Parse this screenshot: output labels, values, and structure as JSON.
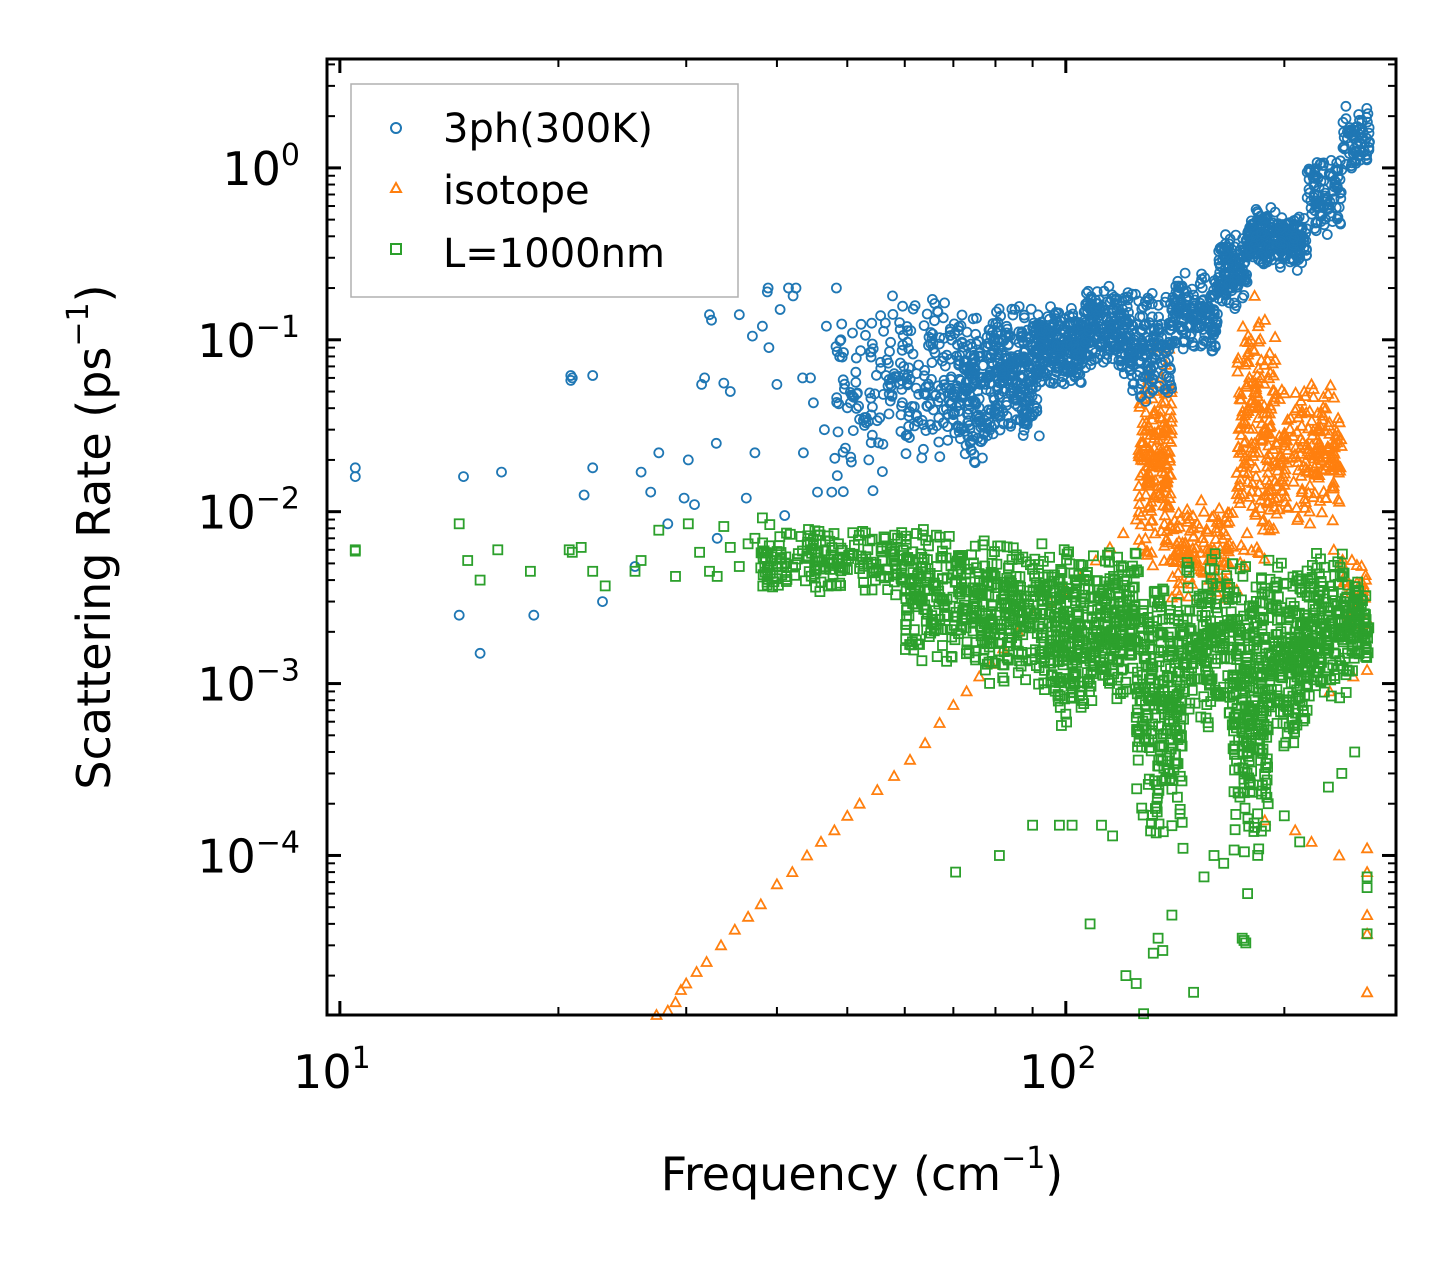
{
  "chart_data": {
    "type": "scatter",
    "xlabel": "Frequency (cm",
    "xlabel_unit_exp": "−1",
    "xlabel_suffix": ")",
    "ylabel": "Scattering Rate (ps",
    "ylabel_unit_exp": "−1",
    "ylabel_suffix": ")",
    "xscale": "log",
    "yscale": "log",
    "xlim": [
      9.6,
      285
    ],
    "ylim": [
      1.18e-05,
      4.3
    ],
    "x_ticks": [
      {
        "value": 10,
        "base": "10",
        "exp": "1"
      },
      {
        "value": 100,
        "base": "10",
        "exp": "2"
      }
    ],
    "y_ticks": [
      {
        "value": 1,
        "base": "10",
        "exp": "0"
      },
      {
        "value": 0.1,
        "base": "10",
        "exp": "−1"
      },
      {
        "value": 0.01,
        "base": "10",
        "exp": "−2"
      },
      {
        "value": 0.001,
        "base": "10",
        "exp": "−3"
      },
      {
        "value": 0.0001,
        "base": "10",
        "exp": "−4"
      }
    ],
    "legend_position": "top-left",
    "series": [
      {
        "name": "3ph(300K)",
        "marker": "circle",
        "color": "#1f77b4",
        "points": [
          [
            10.5,
            0.018
          ],
          [
            10.5,
            0.016
          ],
          [
            14.6,
            0.0025
          ],
          [
            14.8,
            0.016
          ],
          [
            15.6,
            0.0015
          ],
          [
            16.7,
            0.017
          ],
          [
            18.5,
            0.0025
          ],
          [
            20.8,
            0.058
          ],
          [
            20.8,
            0.062
          ],
          [
            20.9,
            0.06
          ],
          [
            21.7,
            0.0125
          ],
          [
            22.3,
            0.018
          ],
          [
            22.3,
            0.062
          ],
          [
            23.0,
            0.003
          ],
          [
            25.5,
            0.0048
          ],
          [
            26.0,
            0.017
          ],
          [
            26.8,
            0.013
          ],
          [
            27.5,
            0.022
          ],
          [
            28.3,
            0.0085
          ],
          [
            29.8,
            0.012
          ],
          [
            30.2,
            0.02
          ],
          [
            30.8,
            0.011
          ],
          [
            31.5,
            0.055
          ],
          [
            31.8,
            0.06
          ],
          [
            32.5,
            0.13
          ],
          [
            32.3,
            0.14
          ],
          [
            33.0,
            0.025
          ],
          [
            33.1,
            0.007
          ],
          [
            33.8,
            0.056
          ],
          [
            34.5,
            0.05
          ],
          [
            35.5,
            0.14
          ],
          [
            36.3,
            0.012
          ],
          [
            37.0,
            0.105
          ],
          [
            37.3,
            0.022
          ],
          [
            38.8,
            0.19
          ],
          [
            38.9,
            0.2
          ],
          [
            38.2,
            0.12
          ],
          [
            39.0,
            0.09
          ],
          [
            40.0,
            0.055
          ],
          [
            40.4,
            0.15
          ],
          [
            41.0,
            0.0095
          ],
          [
            41.5,
            0.2
          ],
          [
            42.1,
            0.18
          ],
          [
            42.5,
            0.2
          ],
          [
            43.4,
            0.06
          ],
          [
            43.5,
            0.022
          ],
          [
            44.5,
            0.06
          ],
          [
            44.9,
            0.043
          ],
          [
            45.5,
            0.013
          ],
          [
            46.5,
            0.03
          ],
          [
            46.8,
            0.12
          ],
          [
            47.6,
            0.013
          ],
          [
            48.3,
            0.2
          ],
          [
            49.0,
            0.1
          ]
        ],
        "clusters": [
          {
            "x_range": [
              48,
              56
            ],
            "y_range": [
              0.012,
              0.17
            ],
            "count": 70
          },
          {
            "x_range": [
              56,
              70
            ],
            "y_range": [
              0.016,
              0.19
            ],
            "count": 150
          },
          {
            "x_range": [
              70,
              78
            ],
            "y_range": [
              0.017,
              0.16
            ],
            "count": 160
          },
          {
            "x_range": [
              78,
              92
            ],
            "y_range": [
              0.025,
              0.17
            ],
            "count": 280
          },
          {
            "x_range": [
              92,
              106
            ],
            "y_range": [
              0.05,
              0.17
            ],
            "count": 220
          },
          {
            "x_range": [
              106,
              122
            ],
            "y_range": [
              0.06,
              0.22
            ],
            "count": 200
          },
          {
            "x_range": [
              122,
              140
            ],
            "y_range": [
              0.04,
              0.2
            ],
            "count": 160
          },
          {
            "x_range": [
              140,
              162
            ],
            "y_range": [
              0.08,
              0.25
            ],
            "count": 160
          },
          {
            "x_range": [
              162,
              178
            ],
            "y_range": [
              0.15,
              0.45
            ],
            "count": 140
          },
          {
            "x_range": [
              178,
              195
            ],
            "y_range": [
              0.25,
              0.6
            ],
            "count": 140
          },
          {
            "x_range": [
              195,
              215
            ],
            "y_range": [
              0.25,
              0.55
            ],
            "count": 140
          },
          {
            "x_range": [
              215,
              240
            ],
            "y_range": [
              0.4,
              1.2
            ],
            "count": 100
          },
          {
            "x_range": [
              240,
              262
            ],
            "y_range": [
              0.9,
              2.4
            ],
            "count": 70
          }
        ]
      },
      {
        "name": "isotope",
        "marker": "triangle",
        "color": "#ff7f0e",
        "points": [
          [
            27.3,
            1.18e-05
          ],
          [
            28.3,
            1.25e-05
          ],
          [
            29.0,
            1.4e-05
          ],
          [
            29.5,
            1.65e-05
          ],
          [
            30.0,
            1.8e-05
          ],
          [
            31.0,
            2.1e-05
          ],
          [
            32.0,
            2.4e-05
          ],
          [
            33.5,
            3e-05
          ],
          [
            35.0,
            3.7e-05
          ],
          [
            36.5,
            4.4e-05
          ],
          [
            38.0,
            5.2e-05
          ],
          [
            40.0,
            6.8e-05
          ],
          [
            42.0,
            8e-05
          ],
          [
            44.0,
            0.0001
          ],
          [
            46.0,
            0.00012
          ],
          [
            48.0,
            0.00014
          ],
          [
            50.0,
            0.00017
          ],
          [
            52.0,
            0.0002
          ],
          [
            55.0,
            0.00024
          ],
          [
            58.0,
            0.00029
          ],
          [
            61.0,
            0.00036
          ],
          [
            64.0,
            0.00045
          ],
          [
            67.0,
            0.00059
          ],
          [
            70.0,
            0.00075
          ],
          [
            73.0,
            0.0009
          ],
          [
            76.0,
            0.0011
          ],
          [
            79.0,
            0.0013
          ],
          [
            82.0,
            0.0016
          ],
          [
            86.0,
            0.002
          ],
          [
            90.0,
            0.0025
          ],
          [
            95.0,
            0.003
          ],
          [
            100,
            0.0035
          ],
          [
            105,
            0.0042
          ],
          [
            110,
            0.0052
          ],
          [
            115,
            0.0062
          ],
          [
            120,
            0.0075
          ],
          [
            125,
            0.009
          ],
          [
            127,
            0.02
          ],
          [
            129,
            0.045
          ],
          [
            131,
            0.07
          ],
          [
            133,
            0.09
          ],
          [
            135,
            0.06
          ],
          [
            137,
            0.03
          ],
          [
            139,
            0.012
          ],
          [
            142,
            0.008
          ],
          [
            146,
            0.006
          ],
          [
            150,
            0.008
          ],
          [
            155,
            0.01
          ],
          [
            160,
            0.006
          ],
          [
            166,
            0.004
          ],
          [
            172,
            0.0035
          ],
          [
            176,
            0.006
          ],
          [
            178,
            0.04
          ],
          [
            180,
            0.1
          ],
          [
            182,
            0.18
          ],
          [
            184,
            0.12
          ],
          [
            186,
            0.06
          ],
          [
            190,
            0.02
          ],
          [
            194,
            0.012
          ],
          [
            199,
            0.015
          ],
          [
            204,
            0.035
          ],
          [
            208,
            0.04
          ],
          [
            213,
            0.05
          ],
          [
            218,
            0.055
          ],
          [
            222,
            0.03
          ],
          [
            228,
            0.012
          ],
          [
            234,
            0.006
          ],
          [
            240,
            0.005
          ],
          [
            248,
            0.003
          ],
          [
            256,
            0.002
          ],
          [
            260,
            0.0012
          ],
          [
            260,
            0.00011
          ],
          [
            260,
            8e-05
          ],
          [
            260,
            4.5e-05
          ],
          [
            260,
            3.5e-05
          ],
          [
            260,
            1.6e-05
          ],
          [
            188,
            0.00016
          ],
          [
            207,
            0.00014
          ],
          [
            218,
            0.00012
          ],
          [
            238,
            0.0001
          ],
          [
            249,
            0.0011
          ],
          [
            231,
            0.0009
          ]
        ],
        "clusters": [
          {
            "x_range": [
              126,
              140
            ],
            "y_range": [
              0.004,
              0.1
            ],
            "count": 180
          },
          {
            "x_range": [
              140,
              170
            ],
            "y_range": [
              0.003,
              0.012
            ],
            "count": 120
          },
          {
            "x_range": [
              172,
              195
            ],
            "y_range": [
              0.004,
              0.18
            ],
            "count": 180
          },
          {
            "x_range": [
              195,
              240
            ],
            "y_range": [
              0.008,
              0.06
            ],
            "count": 180
          },
          {
            "x_range": [
              240,
              262
            ],
            "y_range": [
              0.002,
              0.006
            ],
            "count": 30
          }
        ]
      },
      {
        "name": "L=1000nm",
        "marker": "square",
        "color": "#2ca02c",
        "points": [
          [
            10.5,
            0.006
          ],
          [
            10.5,
            0.0059
          ],
          [
            14.6,
            0.0085
          ],
          [
            15.0,
            0.0052
          ],
          [
            15.6,
            0.004
          ],
          [
            16.5,
            0.006
          ],
          [
            18.3,
            0.0045
          ],
          [
            20.7,
            0.006
          ],
          [
            20.9,
            0.0058
          ],
          [
            21.5,
            0.0062
          ],
          [
            22.3,
            0.0045
          ],
          [
            23.2,
            0.0037
          ],
          [
            25.5,
            0.0045
          ],
          [
            26.0,
            0.0052
          ],
          [
            27.5,
            0.0078
          ],
          [
            29.0,
            0.0042
          ],
          [
            30.2,
            0.0085
          ],
          [
            31.3,
            0.0058
          ],
          [
            32.3,
            0.0045
          ],
          [
            33.1,
            0.0042
          ],
          [
            33.8,
            0.0082
          ],
          [
            34.5,
            0.0062
          ],
          [
            35.5,
            0.0048
          ],
          [
            36.5,
            0.0065
          ],
          [
            37.3,
            0.007
          ],
          [
            38.2,
            0.0092
          ],
          [
            70.5,
            8e-05
          ],
          [
            81.0,
            0.0001
          ],
          [
            90.0,
            0.00015
          ],
          [
            98.0,
            0.00015
          ],
          [
            102,
            0.00015
          ],
          [
            108,
            4e-05
          ],
          [
            112,
            0.00015
          ],
          [
            116,
            0.00013
          ],
          [
            121,
            2e-05
          ],
          [
            125,
            1.8e-05
          ],
          [
            128,
            1.2e-05
          ],
          [
            132,
            2.7e-05
          ],
          [
            134,
            3.3e-05
          ],
          [
            136,
            2.8e-05
          ],
          [
            140,
            4.5e-05
          ],
          [
            145,
            0.00011
          ],
          [
            150,
            1.6e-05
          ],
          [
            155,
            7.5e-05
          ],
          [
            160,
            0.0001
          ],
          [
            165,
            9e-05
          ],
          [
            175,
            3.3e-05
          ],
          [
            176,
            3.2e-05
          ],
          [
            177,
            3.1e-05
          ],
          [
            178,
            6e-05
          ],
          [
            190,
            0.0002
          ],
          [
            200,
            0.00017
          ],
          [
            210,
            0.00012
          ],
          [
            230,
            0.00025
          ],
          [
            240,
            0.0003
          ],
          [
            250,
            0.0004
          ],
          [
            260,
            6.5e-05
          ],
          [
            260,
            3.5e-05
          ],
          [
            260,
            7.5e-05
          ]
        ],
        "clusters": [
          {
            "x_range": [
              38,
              60
            ],
            "y_range": [
              0.0032,
              0.0085
            ],
            "count": 200
          },
          {
            "x_range": [
              60,
              75
            ],
            "y_range": [
              0.0012,
              0.0085
            ],
            "count": 200
          },
          {
            "x_range": [
              75,
              95
            ],
            "y_range": [
              0.0008,
              0.008
            ],
            "count": 260
          },
          {
            "x_range": [
              95,
              110
            ],
            "y_range": [
              0.0005,
              0.007
            ],
            "count": 220
          },
          {
            "x_range": [
              110,
              125
            ],
            "y_range": [
              0.0007,
              0.007
            ],
            "count": 180
          },
          {
            "x_range": [
              125,
              145
            ],
            "y_range": [
              0.00012,
              0.006
            ],
            "count": 260
          },
          {
            "x_range": [
              145,
              170
            ],
            "y_range": [
              0.0005,
              0.006
            ],
            "count": 180
          },
          {
            "x_range": [
              170,
              190
            ],
            "y_range": [
              9e-05,
              0.006
            ],
            "count": 240
          },
          {
            "x_range": [
              190,
              215
            ],
            "y_range": [
              0.0004,
              0.006
            ],
            "count": 200
          },
          {
            "x_range": [
              215,
              245
            ],
            "y_range": [
              0.0007,
              0.006
            ],
            "count": 180
          },
          {
            "x_range": [
              245,
              262
            ],
            "y_range": [
              0.001,
              0.005
            ],
            "count": 80
          }
        ]
      }
    ]
  }
}
